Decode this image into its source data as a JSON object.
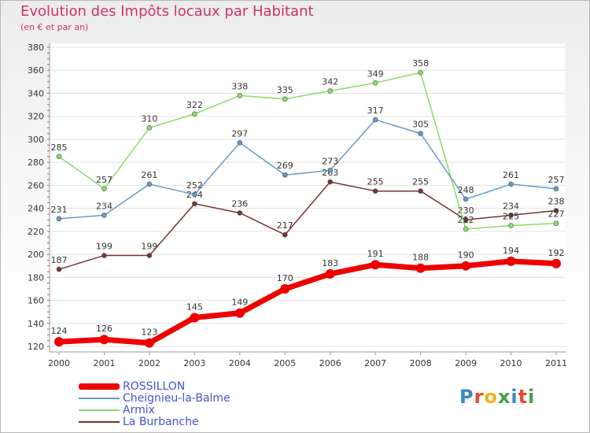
{
  "chart_data": {
    "type": "line",
    "title": "Evolution des Impôts locaux par Habitant",
    "subtitle": "(en € et par an)",
    "xlabel": "",
    "ylabel": "",
    "x": [
      "2000",
      "2001",
      "2002",
      "2003",
      "2004",
      "2005",
      "2006",
      "2007",
      "2008",
      "2009",
      "2010",
      "2011"
    ],
    "ylim": [
      120,
      380
    ],
    "yticks": [
      120,
      140,
      160,
      180,
      200,
      220,
      240,
      260,
      280,
      300,
      320,
      340,
      360,
      380
    ],
    "series": [
      {
        "name": "ROSSILLON",
        "color": "#ee0000",
        "values": [
          124,
          126,
          123,
          145,
          149,
          170,
          183,
          191,
          188,
          190,
          194,
          192
        ]
      },
      {
        "name": "Cheignieu-la-Balme",
        "color": "#6699cc",
        "values": [
          231,
          234,
          261,
          252,
          297,
          269,
          273,
          317,
          305,
          248,
          261,
          257
        ]
      },
      {
        "name": "Armix",
        "color": "#88dd66",
        "values": [
          285,
          257,
          310,
          322,
          338,
          335,
          342,
          349,
          358,
          222,
          225,
          227
        ]
      },
      {
        "name": "La Burbanche",
        "color": "#773333",
        "values": [
          187,
          199,
          199,
          244,
          236,
          217,
          263,
          255,
          255,
          230,
          234,
          238
        ]
      }
    ]
  },
  "logo": {
    "letters": [
      "P",
      "r",
      "o",
      "x",
      "i",
      "t",
      "i"
    ]
  }
}
